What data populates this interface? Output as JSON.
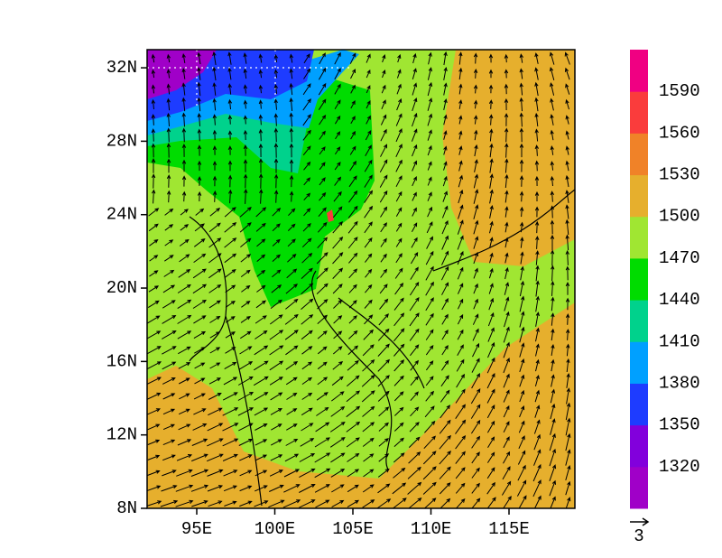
{
  "map": {
    "lat_ticks": [
      {
        "value": 32,
        "label": "32N"
      },
      {
        "value": 28,
        "label": "28N"
      },
      {
        "value": 24,
        "label": "24N"
      },
      {
        "value": 20,
        "label": "20N"
      },
      {
        "value": 16,
        "label": "16N"
      },
      {
        "value": 12,
        "label": "12N"
      },
      {
        "value": 8,
        "label": "8N"
      }
    ],
    "lon_ticks": [
      {
        "value": 95,
        "label": "95E"
      },
      {
        "value": 100,
        "label": "100E"
      },
      {
        "value": 105,
        "label": "105E"
      },
      {
        "value": 110,
        "label": "110E"
      },
      {
        "value": 115,
        "label": "115E"
      }
    ],
    "colorbar": {
      "levels": [
        1320,
        1350,
        1380,
        1410,
        1440,
        1470,
        1500,
        1530,
        1560,
        1590
      ],
      "colors": [
        "#a000c8",
        "#8200dc",
        "#1e3cff",
        "#00a0ff",
        "#00d28c",
        "#00dc00",
        "#a0e632",
        "#e6af2d",
        "#f08228",
        "#fa3c3c",
        "#f00082"
      ]
    },
    "vector_reference": {
      "label": "3"
    }
  }
}
